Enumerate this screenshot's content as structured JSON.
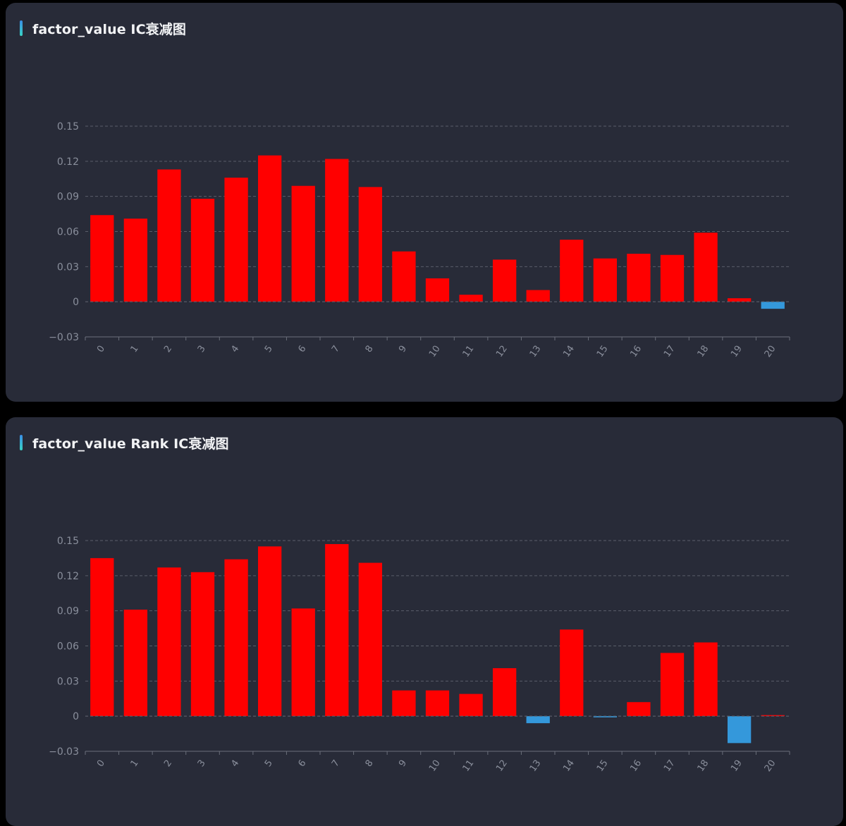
{
  "panels": [
    {
      "title": "factor_value IC衰减图",
      "chart": "ic"
    },
    {
      "title": "factor_value Rank IC衰减图",
      "chart": "rank_ic"
    }
  ],
  "colors": {
    "positive": "#ff0000",
    "negative": "#3498db",
    "background": "#282b38",
    "grid": "#5a5e6a",
    "axis": "#6b6f7b",
    "tick_label": "#8a8f9c",
    "title": "#f2f3f5",
    "accent_top": "#3a8ee6",
    "accent_bottom": "#39d3c4"
  },
  "chart_data": [
    {
      "type": "bar",
      "title": "factor_value IC衰减图",
      "xlabel": "",
      "ylabel": "",
      "categories": [
        "0",
        "1",
        "2",
        "3",
        "4",
        "5",
        "6",
        "7",
        "8",
        "9",
        "10",
        "11",
        "12",
        "13",
        "14",
        "15",
        "16",
        "17",
        "18",
        "19",
        "20"
      ],
      "values": [
        0.074,
        0.071,
        0.113,
        0.088,
        0.106,
        0.125,
        0.099,
        0.122,
        0.098,
        0.043,
        0.02,
        0.006,
        0.036,
        0.01,
        0.053,
        0.037,
        0.041,
        0.04,
        0.059,
        0.003,
        -0.006
      ],
      "ylim": [
        -0.03,
        0.15
      ],
      "yticks": [
        "−0.03",
        "0",
        "0.03",
        "0.06",
        "0.09",
        "0.12",
        "0.15"
      ],
      "ytick_values": [
        -0.03,
        0,
        0.03,
        0.06,
        0.09,
        0.12,
        0.15
      ],
      "grid": "horizontal dashed",
      "bar_color_rule": "red when positive, blue when negative"
    },
    {
      "type": "bar",
      "title": "factor_value Rank IC衰减图",
      "xlabel": "",
      "ylabel": "",
      "categories": [
        "0",
        "1",
        "2",
        "3",
        "4",
        "5",
        "6",
        "7",
        "8",
        "9",
        "10",
        "11",
        "12",
        "13",
        "14",
        "15",
        "16",
        "17",
        "18",
        "19",
        "20"
      ],
      "values": [
        0.135,
        0.091,
        0.127,
        0.123,
        0.134,
        0.145,
        0.092,
        0.147,
        0.131,
        0.022,
        0.022,
        0.019,
        0.041,
        -0.006,
        0.074,
        -0.001,
        0.012,
        0.054,
        0.063,
        -0.023,
        0.0005
      ],
      "ylim": [
        -0.03,
        0.15
      ],
      "yticks": [
        "−0.03",
        "0",
        "0.03",
        "0.06",
        "0.09",
        "0.12",
        "0.15"
      ],
      "ytick_values": [
        -0.03,
        0,
        0.03,
        0.06,
        0.09,
        0.12,
        0.15
      ],
      "grid": "horizontal dashed",
      "bar_color_rule": "red when positive, blue when negative"
    }
  ]
}
